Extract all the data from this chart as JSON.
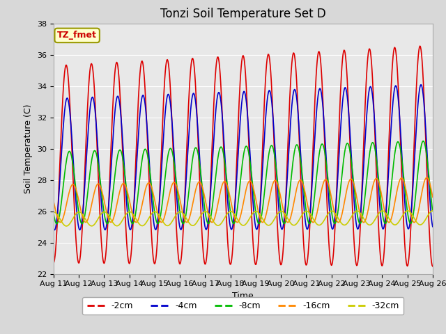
{
  "title": "Tonzi Soil Temperature Set D",
  "xlabel": "Time",
  "ylabel": "Soil Temperature (C)",
  "ylim": [
    22,
    38
  ],
  "xlim_start": 0,
  "xlim_end": 15,
  "xtick_labels": [
    "Aug 11",
    "Aug 12",
    "Aug 13",
    "Aug 14",
    "Aug 15",
    "Aug 16",
    "Aug 17",
    "Aug 18",
    "Aug 19",
    "Aug 20",
    "Aug 21",
    "Aug 22",
    "Aug 23",
    "Aug 24",
    "Aug 25",
    "Aug 26"
  ],
  "ytick_vals": [
    22,
    24,
    26,
    28,
    30,
    32,
    34,
    36,
    38
  ],
  "fig_bg_color": "#d8d8d8",
  "plot_bg_color": "#e8e8e8",
  "legend_label": "TZ_fmet",
  "legend_label_color": "#cc0000",
  "legend_bg": "#ffffcc",
  "lines": {
    "-2cm": {
      "color": "#dd0000",
      "lw": 1.2
    },
    "-4cm": {
      "color": "#0000cc",
      "lw": 1.2
    },
    "-8cm": {
      "color": "#00bb00",
      "lw": 1.2
    },
    "-16cm": {
      "color": "#ff8800",
      "lw": 1.2
    },
    "-32cm": {
      "color": "#cccc00",
      "lw": 1.2
    }
  },
  "grid_color": "#ffffff",
  "title_fontsize": 12,
  "axis_fontsize": 9,
  "tick_fontsize": 8
}
